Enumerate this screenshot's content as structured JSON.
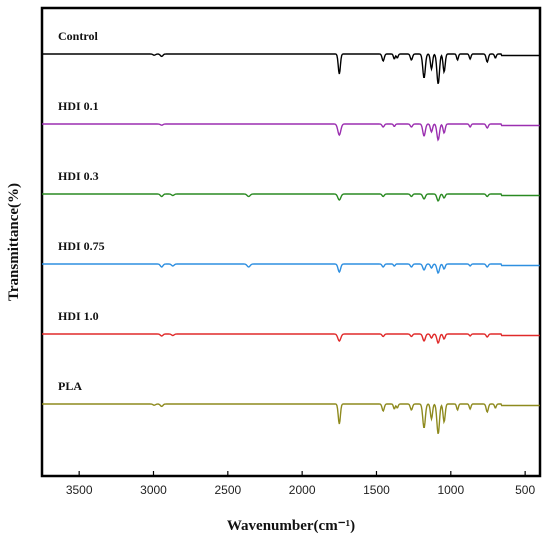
{
  "chart_data": {
    "type": "line",
    "title": "",
    "xlabel": "Wavenumber(cm⁻¹)",
    "ylabel": "Transmittance(%)",
    "xlim": [
      3750,
      400
    ],
    "x_reversed": true,
    "x_ticks": [
      "3500",
      "3000",
      "2500",
      "2000",
      "1500",
      "1000",
      "500"
    ],
    "y_ticks": [],
    "grid": false,
    "legend": "labels-above-each-trace",
    "series": [
      {
        "name": "Control",
        "color": "#000000",
        "offset": 0,
        "baseline": 100,
        "peaks": [
          {
            "x": 2995,
            "depth": 1.2,
            "width": 12
          },
          {
            "x": 2945,
            "depth": 2.4,
            "width": 12
          },
          {
            "x": 1750,
            "depth": 20,
            "width": 10
          },
          {
            "x": 1455,
            "depth": 7,
            "width": 10
          },
          {
            "x": 1380,
            "depth": 5,
            "width": 8
          },
          {
            "x": 1360,
            "depth": 4,
            "width": 8
          },
          {
            "x": 1265,
            "depth": 6,
            "width": 10
          },
          {
            "x": 1180,
            "depth": 24,
            "width": 12
          },
          {
            "x": 1130,
            "depth": 15,
            "width": 10
          },
          {
            "x": 1085,
            "depth": 30,
            "width": 12
          },
          {
            "x": 1045,
            "depth": 18,
            "width": 10
          },
          {
            "x": 955,
            "depth": 6,
            "width": 8
          },
          {
            "x": 870,
            "depth": 5,
            "width": 8
          },
          {
            "x": 755,
            "depth": 8,
            "width": 10
          },
          {
            "x": 700,
            "depth": 4,
            "width": 8
          }
        ]
      },
      {
        "name": "HDI 0.1",
        "color": "#9b2fb0",
        "offset": 1,
        "baseline": 100,
        "peaks": [
          {
            "x": 2945,
            "depth": 1.2,
            "width": 12
          },
          {
            "x": 1750,
            "depth": 11,
            "width": 14
          },
          {
            "x": 1455,
            "depth": 3,
            "width": 10
          },
          {
            "x": 1380,
            "depth": 2.5,
            "width": 8
          },
          {
            "x": 1265,
            "depth": 3,
            "width": 10
          },
          {
            "x": 1180,
            "depth": 12,
            "width": 12
          },
          {
            "x": 1130,
            "depth": 8,
            "width": 10
          },
          {
            "x": 1085,
            "depth": 16,
            "width": 12
          },
          {
            "x": 1045,
            "depth": 9,
            "width": 10
          },
          {
            "x": 870,
            "depth": 3,
            "width": 8
          },
          {
            "x": 755,
            "depth": 4,
            "width": 10
          }
        ]
      },
      {
        "name": "HDI 0.3",
        "color": "#2a8a22",
        "offset": 2,
        "baseline": 100,
        "peaks": [
          {
            "x": 2945,
            "depth": 2.5,
            "width": 12
          },
          {
            "x": 2870,
            "depth": 1.5,
            "width": 12
          },
          {
            "x": 2360,
            "depth": 2.5,
            "width": 14
          },
          {
            "x": 1750,
            "depth": 6,
            "width": 14
          },
          {
            "x": 1455,
            "depth": 2.5,
            "width": 10
          },
          {
            "x": 1265,
            "depth": 2.5,
            "width": 10
          },
          {
            "x": 1180,
            "depth": 5,
            "width": 12
          },
          {
            "x": 1085,
            "depth": 7,
            "width": 12
          },
          {
            "x": 1045,
            "depth": 4,
            "width": 10
          },
          {
            "x": 755,
            "depth": 2.5,
            "width": 10
          }
        ]
      },
      {
        "name": "HDI 0.75",
        "color": "#2e8fe0",
        "offset": 3,
        "baseline": 100,
        "peaks": [
          {
            "x": 2945,
            "depth": 3,
            "width": 12
          },
          {
            "x": 2870,
            "depth": 2,
            "width": 12
          },
          {
            "x": 2360,
            "depth": 3,
            "width": 14
          },
          {
            "x": 1750,
            "depth": 8,
            "width": 12
          },
          {
            "x": 1455,
            "depth": 3,
            "width": 10
          },
          {
            "x": 1380,
            "depth": 2,
            "width": 8
          },
          {
            "x": 1265,
            "depth": 3,
            "width": 10
          },
          {
            "x": 1180,
            "depth": 6,
            "width": 12
          },
          {
            "x": 1130,
            "depth": 4,
            "width": 10
          },
          {
            "x": 1085,
            "depth": 9,
            "width": 12
          },
          {
            "x": 1045,
            "depth": 5,
            "width": 10
          },
          {
            "x": 870,
            "depth": 2,
            "width": 8
          },
          {
            "x": 755,
            "depth": 3,
            "width": 10
          }
        ]
      },
      {
        "name": "HDI 1.0",
        "color": "#e02a2a",
        "offset": 4,
        "baseline": 100,
        "peaks": [
          {
            "x": 2945,
            "depth": 2,
            "width": 12
          },
          {
            "x": 2870,
            "depth": 1.5,
            "width": 12
          },
          {
            "x": 1750,
            "depth": 7,
            "width": 14
          },
          {
            "x": 1455,
            "depth": 2.5,
            "width": 10
          },
          {
            "x": 1265,
            "depth": 2.5,
            "width": 10
          },
          {
            "x": 1180,
            "depth": 7,
            "width": 12
          },
          {
            "x": 1130,
            "depth": 4,
            "width": 10
          },
          {
            "x": 1085,
            "depth": 9,
            "width": 12
          },
          {
            "x": 1045,
            "depth": 5,
            "width": 10
          },
          {
            "x": 870,
            "depth": 2,
            "width": 8
          },
          {
            "x": 755,
            "depth": 3,
            "width": 10
          }
        ]
      },
      {
        "name": "PLA",
        "color": "#8e8a1e",
        "offset": 5,
        "baseline": 100,
        "peaks": [
          {
            "x": 2995,
            "depth": 1.2,
            "width": 12
          },
          {
            "x": 2945,
            "depth": 2.4,
            "width": 12
          },
          {
            "x": 1750,
            "depth": 20,
            "width": 10
          },
          {
            "x": 1455,
            "depth": 7,
            "width": 10
          },
          {
            "x": 1380,
            "depth": 5,
            "width": 8
          },
          {
            "x": 1360,
            "depth": 4,
            "width": 8
          },
          {
            "x": 1265,
            "depth": 6,
            "width": 10
          },
          {
            "x": 1180,
            "depth": 24,
            "width": 12
          },
          {
            "x": 1130,
            "depth": 15,
            "width": 10
          },
          {
            "x": 1085,
            "depth": 30,
            "width": 12
          },
          {
            "x": 1045,
            "depth": 18,
            "width": 10
          },
          {
            "x": 955,
            "depth": 6,
            "width": 8
          },
          {
            "x": 870,
            "depth": 5,
            "width": 8
          },
          {
            "x": 755,
            "depth": 8,
            "width": 10
          },
          {
            "x": 700,
            "depth": 4,
            "width": 8
          }
        ]
      }
    ]
  }
}
